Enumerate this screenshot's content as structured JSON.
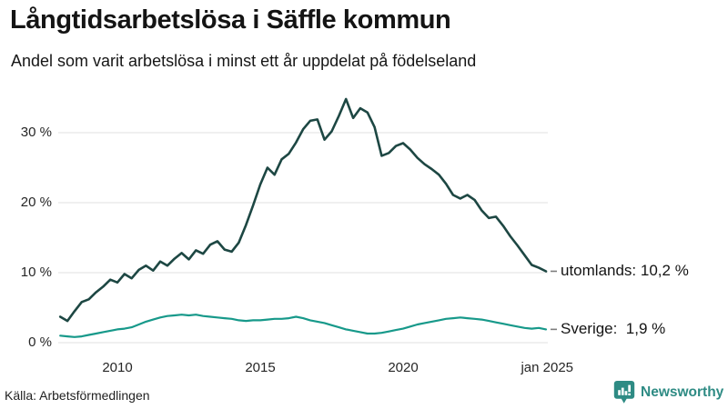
{
  "header": {
    "title": "Långtidsarbetslösa i Säffle kommun",
    "subtitle": "Andel som varit arbetslösa i minst ett år uppdelat på födelseland"
  },
  "footer": {
    "source": "Källa: Arbetsförmedlingen",
    "brand": "Newsworthy"
  },
  "colors": {
    "background": "#ffffff",
    "grid": "#e2e2e2",
    "text": "#141414",
    "axis_text": "#262626",
    "leader_dash": "#7d7d7d",
    "brand_teal": "#2e8b84",
    "series_utomlands": "#1d4743",
    "series_sverige": "#17998a"
  },
  "chart_data": {
    "type": "line",
    "title": "Långtidsarbetslösa i Säffle kommun",
    "subtitle": "Andel som varit arbetslösa i minst ett år uppdelat på födelseland",
    "xlabel": "",
    "ylabel": "",
    "unit": "%",
    "grid": "horizontal",
    "legend_position": "end-of-line",
    "ylim": [
      0,
      36
    ],
    "x_start": 2008.0,
    "x_step": 0.25,
    "x_end": 2025.0,
    "x_axis": {
      "ticks": [
        {
          "label": "2010",
          "t": 2010
        },
        {
          "label": "2015",
          "t": 2015
        },
        {
          "label": "2020",
          "t": 2020
        },
        {
          "label": "jan 2025",
          "t": 2025.04
        }
      ]
    },
    "y_axis": {
      "ticks": [
        {
          "label": "0 %",
          "value": 0
        },
        {
          "label": "10 %",
          "value": 10
        },
        {
          "label": "20 %",
          "value": 20
        },
        {
          "label": "30 %",
          "value": 30
        }
      ]
    },
    "series": [
      {
        "name": "utomlands",
        "end_label": "utomlands: 10,2 %",
        "last_value": 10.2,
        "color": "#1d4743",
        "stroke_width": 2.6,
        "values": [
          3.7,
          3.1,
          4.5,
          5.8,
          6.2,
          7.2,
          8.0,
          9.0,
          8.6,
          9.8,
          9.2,
          10.4,
          11.0,
          10.3,
          11.6,
          11.0,
          12.0,
          12.8,
          11.9,
          13.2,
          12.7,
          14.0,
          14.5,
          13.3,
          13.0,
          14.3,
          16.8,
          19.6,
          22.6,
          25.0,
          24.0,
          26.2,
          27.0,
          28.6,
          30.5,
          31.7,
          31.9,
          29.0,
          30.2,
          32.4,
          34.8,
          32.1,
          33.5,
          32.9,
          30.8,
          26.7,
          27.1,
          28.1,
          28.5,
          27.6,
          26.4,
          25.5,
          24.8,
          24.0,
          22.7,
          21.1,
          20.6,
          21.1,
          20.4,
          18.9,
          17.8,
          18.0,
          16.7,
          15.2,
          13.9,
          12.5,
          11.1,
          10.7,
          10.2
        ]
      },
      {
        "name": "Sverige",
        "end_label": "Sverige:  1,9 %",
        "last_value": 1.9,
        "color": "#17998a",
        "stroke_width": 2.2,
        "values": [
          1.0,
          0.9,
          0.8,
          0.9,
          1.1,
          1.3,
          1.5,
          1.7,
          1.9,
          2.0,
          2.2,
          2.6,
          3.0,
          3.3,
          3.6,
          3.8,
          3.9,
          4.0,
          3.9,
          4.0,
          3.8,
          3.7,
          3.6,
          3.5,
          3.4,
          3.2,
          3.1,
          3.2,
          3.2,
          3.3,
          3.4,
          3.4,
          3.5,
          3.7,
          3.5,
          3.2,
          3.0,
          2.8,
          2.5,
          2.2,
          1.9,
          1.7,
          1.5,
          1.3,
          1.3,
          1.4,
          1.6,
          1.8,
          2.0,
          2.3,
          2.6,
          2.8,
          3.0,
          3.2,
          3.4,
          3.5,
          3.6,
          3.5,
          3.4,
          3.3,
          3.1,
          2.9,
          2.7,
          2.5,
          2.3,
          2.1,
          2.0,
          2.1,
          1.9
        ]
      }
    ]
  }
}
